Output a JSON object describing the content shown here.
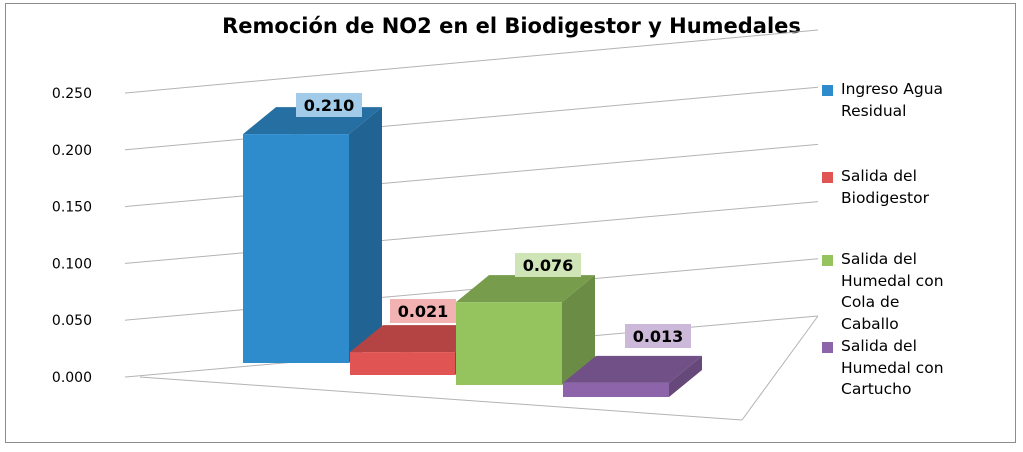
{
  "chart_data": {
    "type": "bar",
    "title": "Remoción de NO2 en el Biodigestor y Humedales",
    "categories": [
      "Ingreso Agua Residual",
      "Salida del Biodigestor",
      "Salida del Humedal con Cola de Caballo",
      "Salida del Humedal con Cartucho"
    ],
    "values": [
      0.21,
      0.021,
      0.076,
      0.013
    ],
    "data_labels": [
      "0.210",
      "0.021",
      "0.076",
      "0.013"
    ],
    "series": [
      {
        "name": "Ingreso Agua Residual",
        "legend_text": "Ingreso Agua\nResidual",
        "value": 0.21,
        "color": "#2e8bcc"
      },
      {
        "name": "Salida del Biodigestor",
        "legend_text": "Salida del\nBiodigestor",
        "value": 0.021,
        "color": "#e15454"
      },
      {
        "name": "Salida del Humedal con Cola de Caballo",
        "legend_text": "Salida del\nHumedal con\nCola de\nCaballo",
        "value": 0.076,
        "color": "#95c35e"
      },
      {
        "name": "Salida del Humedal con Cartucho",
        "legend_text": "Salida del\nHumedal con\nCartucho",
        "value": 0.013,
        "color": "#8d64aa"
      }
    ],
    "yticks": [
      "0.000",
      "0.050",
      "0.100",
      "0.150",
      "0.200",
      "0.250"
    ],
    "ylim": [
      0,
      0.25
    ],
    "grid": true,
    "three_d": true,
    "legend_position": "right",
    "xlabel": "",
    "ylabel": ""
  }
}
